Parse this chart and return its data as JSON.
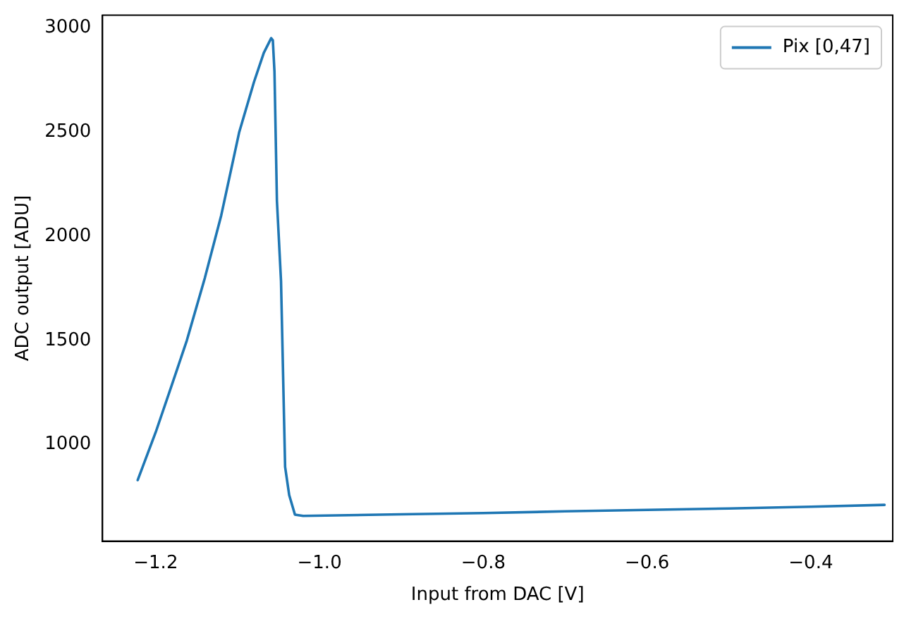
{
  "chart_data": {
    "type": "line",
    "xlabel": "Input from DAC [V]",
    "ylabel": "ADC output [ADU]",
    "x": [
      -1.222,
      -1.2,
      -1.18,
      -1.162,
      -1.14,
      -1.12,
      -1.098,
      -1.08,
      -1.068,
      -1.059,
      -1.057,
      -1.055,
      -1.052,
      -1.047,
      -1.042,
      -1.037,
      -1.03,
      -1.02,
      -0.9,
      -0.8,
      -0.7,
      -0.6,
      -0.5,
      -0.4,
      -0.31
    ],
    "series": [
      {
        "name": "Pix [0,47]",
        "color": "#1f77b4",
        "values": [
          830,
          1060,
          1290,
          1500,
          1800,
          2100,
          2500,
          2740,
          2880,
          2950,
          2940,
          2790,
          2170,
          1785,
          893,
          758,
          664,
          658,
          666,
          672,
          680,
          687,
          694,
          702,
          711
        ]
      }
    ],
    "xlim": [
      -1.265,
      -0.3
    ],
    "xticks": [
      -1.2,
      {
        "value": -1.0,
        "label": "−1.0"
      },
      -0.8,
      -0.6,
      -0.4
    ],
    "ylim": [
      537,
      3060
    ],
    "yticks": [
      1000,
      1500,
      2000,
      2500,
      3000
    ],
    "grid": false,
    "legend": "top right",
    "marker": "none",
    "line_style": "solid"
  }
}
